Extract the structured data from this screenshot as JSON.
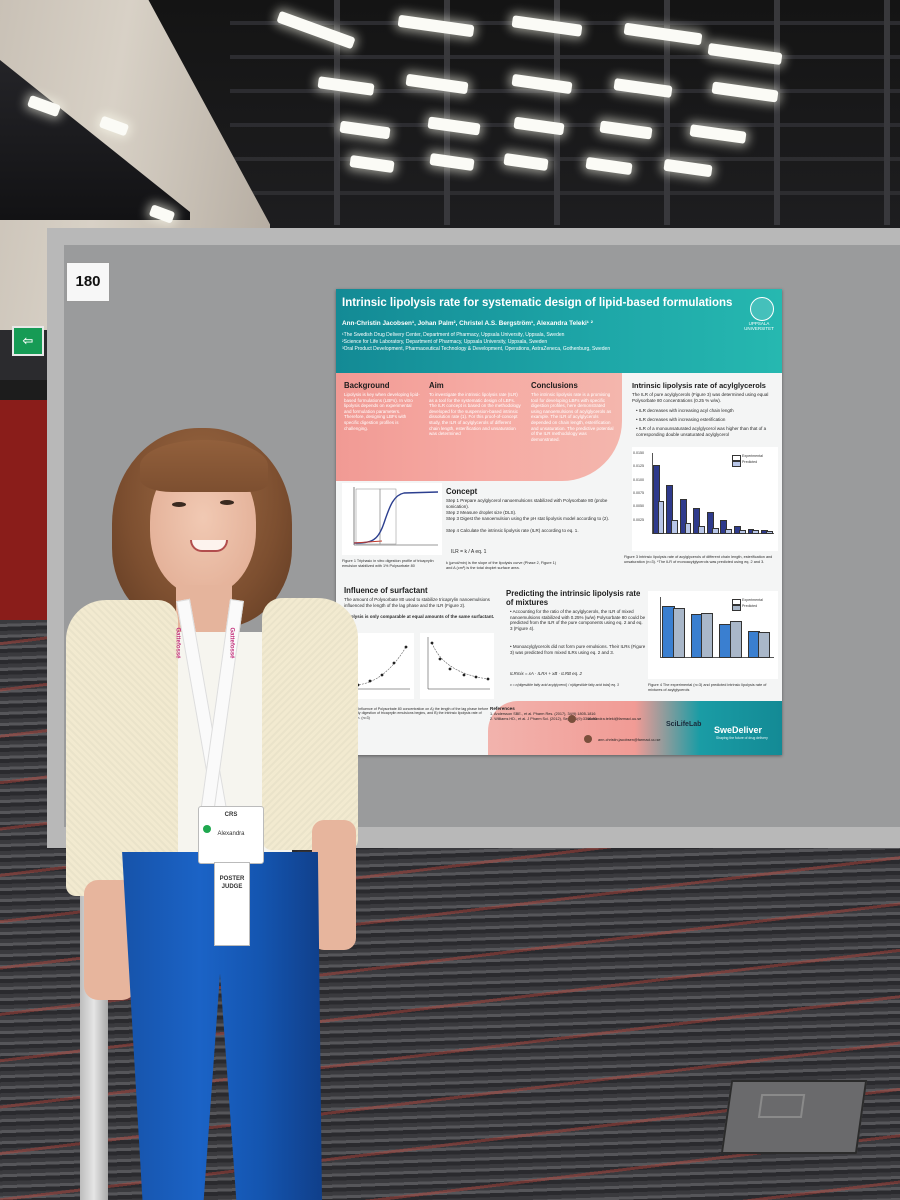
{
  "board_number": "180",
  "exit_sign": "⇦",
  "poster": {
    "title": "Intrinsic lipolysis rate for systematic design of lipid-based formulations",
    "authors": "Ann-Christin Jacobsen¹, Johan Palm², Christel A.S. Bergström¹, Alexandra Teleki¹ ²",
    "affiliations": [
      "¹The Swedish Drug Delivery Center, Department of Pharmacy, Uppsala University, Uppsala, Sweden",
      "²Science for Life Laboratory, Department of Pharmacy, Uppsala University, Uppsala, Sweden",
      "³Oral Product Development, Pharmaceutical Technology & Development, Operations, AstraZeneca, Gothenburg, Sweden"
    ],
    "university": "UPPSALA UNIVERSITET",
    "background": {
      "heading": "Background",
      "text": "Lipolysis is key when developing lipid-based formulations (LBFs). In vitro lipolysis depends on experimental and formulation parameters. Therefore, designing LBFs with specific digestion profiles is challenging."
    },
    "aim": {
      "heading": "Aim",
      "text": "To investigate the intrinsic lipolysis rate (ILR) as a tool for the systematic design of LBFs. The ILR concept is based on the methodology developed for the suspension-based intrinsic dissolution rate (1). For this proof-of-concept study, the ILR of acylglycerols of different chain length, esterification and unsaturation was determined"
    },
    "conclusions": {
      "heading": "Conclusions",
      "text": "The intrinsic lipolysis rate is a promising tool for developing LBFs with specific digestion profiles, here demonstrated using nanoemulsions of acylglycerols as example. The ILR of acylglycerols depended on chain length, esterification and unsaturation. The predictive potential of the ILR methodology was demonstrated."
    },
    "acyl": {
      "heading": "Intrinsic lipolysis rate of acylglycerols",
      "text": "The ILR of pure acylglycerols (Figure 3) was determined using equal Polysorbate 80 concentrations (0.25 % w/w).",
      "bullets": [
        "ILR decreases with increasing acyl chain length",
        "ILR decreases with increasing esterification",
        "ILR of a monounsaturated acylglycerol was higher than that of a corresponding double unsaturated acylglycerol"
      ],
      "legend": [
        "Experimental",
        "Predicted"
      ],
      "yticks": [
        "0.0150",
        "0.0125",
        "0.0100",
        "0.0075",
        "0.0050",
        "0.0025"
      ],
      "caption": "Figure 3 Intrinsic lipolysis rate of acylglycerols of different chain length, esterification and unsaturation (n=3). *The ILR of monoacylglycerols was predicted using eq. 2 and 3."
    },
    "concept": {
      "heading": "Concept",
      "steps": [
        "Step 1 Prepare acylglycerol nanoemulsions stabilized with Polysorbate 80 (probe sonication).",
        "Step 2 Measure droplet size (DLS).",
        "Step 3 Digest the nanoemulsion using the pH stat lipolysis model according to (2).",
        "Step 4 Calculate the intrinsic lipolysis rate (ILR) according to eq. 1."
      ],
      "equation": "ILR = k / A        eq. 1",
      "note": "k (µmol/min) is the slope of the lipolysis curve (Phase 2, Figure 1) and A (cm²) is the total droplet surface area.",
      "caption": "Figure 1 Triphasic in vitro digestion profile of tricaprylin emulsion stabilized with 1% Polysorbate 80"
    },
    "surfactant": {
      "heading": "Influence of surfactant",
      "text": "The amount of Polysorbate 80 used to stabilize tricaprylin nanoemulsions influenced the length of the lag phase and the ILR (Figure 2).",
      "bold": "Lipolysis is only comparable at equal amounts of the same surfactant.",
      "caption": "Figure 2 Influence of Polysorbate 80 concentration on A) the length of the lag phase before the steady digestion of tricaprylin emulsions begins, and B) the intrinsic lipolysis rate of tricaprylin. (n=3)"
    },
    "predicting": {
      "heading": "Predicting the intrinsic lipolysis rate of mixtures",
      "bullets": [
        "Accounting for the ratio of the acylglycerols, the ILR of mixed nanoemulsions stabilized with 0.25% (w/w) Polysorbate 80 could be predicted from the ILR of the pure components using eq. 2 and eq. 3 (Figure 4).",
        "Monoacylglycerols did not form pure emulsions. Their ILRs (Figure 3) was predicted from mixed ILRs using eq. 2 and 3."
      ],
      "eq2": "ILRmix = xA · ILRA + xB · ILRB      eq. 2",
      "eq3": "x = n(digestible fatty acid acylglycerol) / n(digestible fatty acid total)      eq. 3",
      "caption": "Figure 4 The experimental (n=3) and predicted intrinsic lipolysis rate of mixtures of acylglycerols"
    },
    "references": {
      "heading": "References",
      "items": [
        "1. Andersson SBE., et al. Pharm Res. (2017), 34(9):1805-1816",
        "2. Williams HD., et al. J Pharm Sci. (2012), Sep;101(9):3360-80"
      ]
    },
    "contacts": [
      "alexandra.teleki@farmaci.uu.se",
      "ann-christin.jacobsen@farmaci.uu.se"
    ],
    "brands": [
      "SciLifeLab",
      "SweDeliver"
    ],
    "brand_tagline": "Shaping the future of drug delivery"
  },
  "badge": {
    "org": "CRS",
    "name": "Alexandra",
    "role": "POSTER JUDGE"
  },
  "lanyard": "Gattefossé",
  "chart3": {
    "experimental": [
      0.0125,
      0.0088,
      0.0062,
      0.0045,
      0.0038,
      0.0022,
      0.0012,
      0.0005,
      0.0004
    ],
    "predicted": [
      0.0058,
      0.0022,
      0.0016,
      0.0012,
      0.0008,
      0.0005,
      0.0004,
      0.0003,
      0.0002
    ],
    "ymax": 0.015,
    "colors": {
      "experimental": "#2e3a8c",
      "predicted": "#b8c6e8"
    }
  },
  "chart4": {
    "experimental": [
      0.0042,
      0.0035,
      0.0027,
      0.0021
    ],
    "predicted": [
      0.004,
      0.0036,
      0.0029,
      0.002
    ],
    "ymax": 0.005,
    "colors": {
      "experimental": "#3a7fd0",
      "predicted": "#a9b7c9"
    },
    "legend": [
      "Experimental",
      "Predicted"
    ]
  }
}
